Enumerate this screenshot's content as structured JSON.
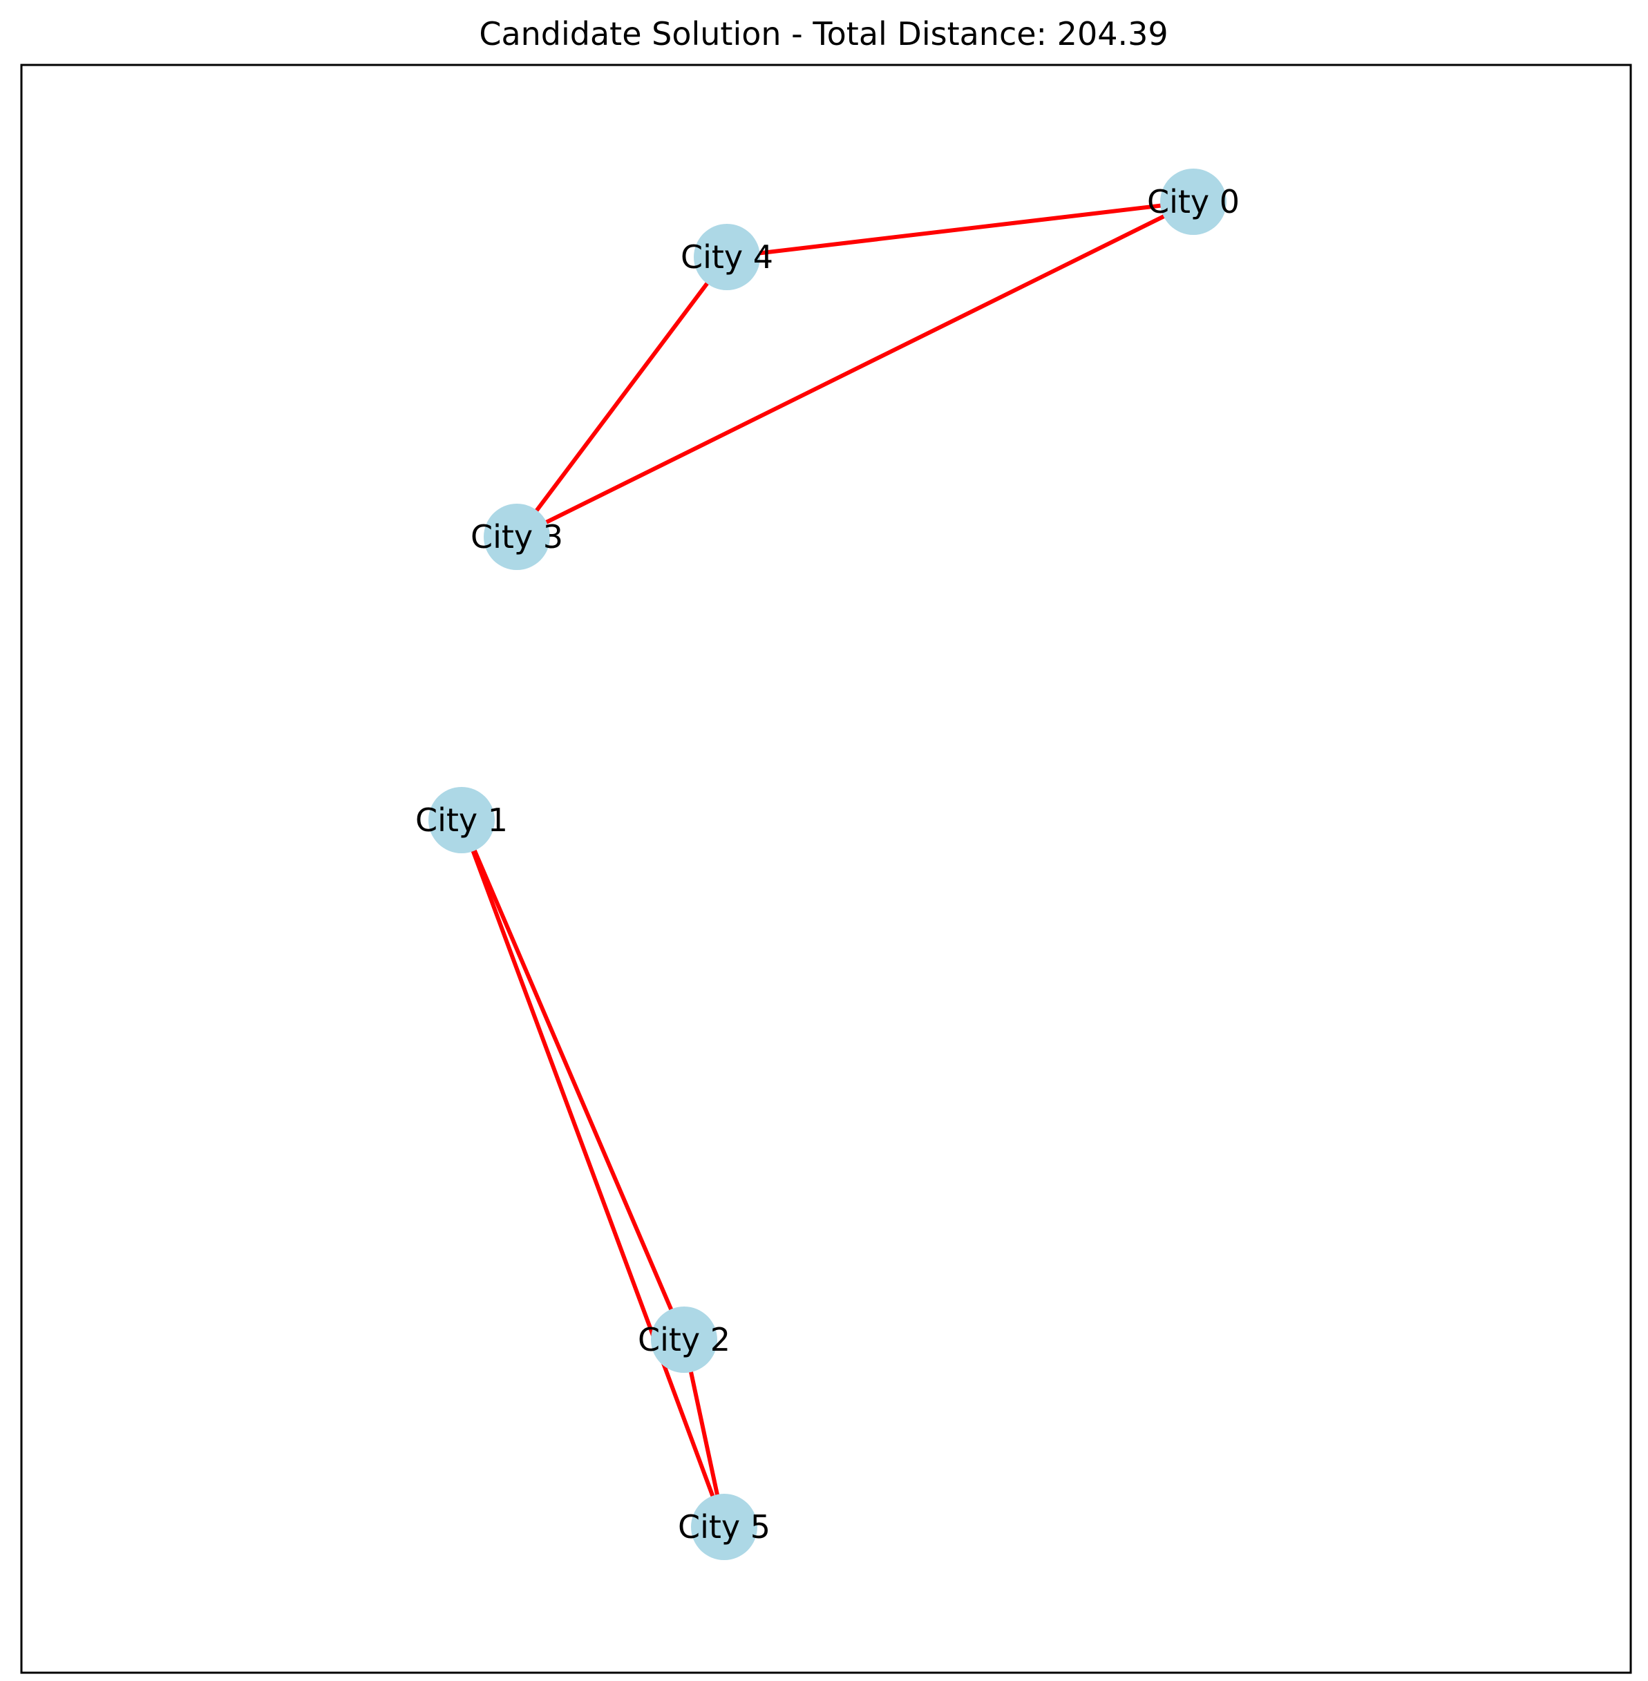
{
  "title": "Candidate Solution - Total Distance: 204.39",
  "colors": {
    "edge": "#ff0000",
    "node": "#add8e6",
    "frame": "#000000",
    "background": "#ffffff"
  },
  "nodes": [
    {
      "id": 0,
      "label": "City 0"
    },
    {
      "id": 1,
      "label": "City 1"
    },
    {
      "id": 2,
      "label": "City 2"
    },
    {
      "id": 3,
      "label": "City 3"
    },
    {
      "id": 4,
      "label": "City 4"
    },
    {
      "id": 5,
      "label": "City 5"
    }
  ],
  "edges": [
    {
      "from": 0,
      "to": 4
    },
    {
      "from": 4,
      "to": 3
    },
    {
      "from": 3,
      "to": 0
    },
    {
      "from": 1,
      "to": 2
    },
    {
      "from": 2,
      "to": 5
    },
    {
      "from": 5,
      "to": 1
    }
  ]
}
